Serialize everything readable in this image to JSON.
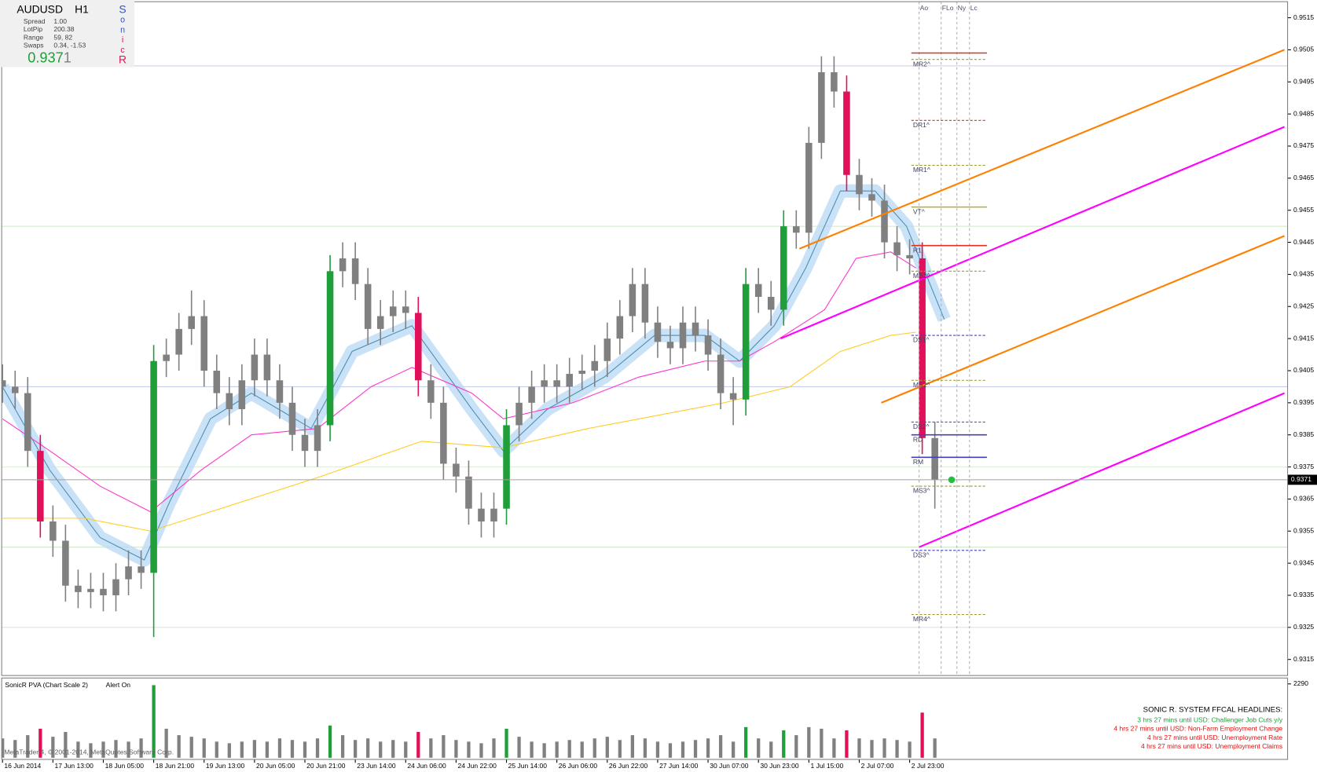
{
  "chart_data": {
    "type": "candlestick",
    "title": "AUDUSD",
    "timeframe": "H1",
    "info": [
      {
        "label": "Spread",
        "value": "1.00"
      },
      {
        "label": "LotPip",
        "value": "200.38"
      },
      {
        "label": "Range",
        "value": "59, 82"
      },
      {
        "label": "Swaps",
        "value": "0.34, -1.53"
      }
    ],
    "price_main": "0.937",
    "price_last": "1",
    "sonic_letters": [
      {
        "text": "S",
        "color": "#3050d0"
      },
      {
        "text": "o",
        "color": "#3050d0"
      },
      {
        "text": "n",
        "color": "#3050d0"
      },
      {
        "text": "i",
        "color": "#e0105a"
      },
      {
        "text": "c",
        "color": "#e0105a"
      },
      {
        "text": "R",
        "color": "#e0105a"
      }
    ],
    "x": [
      0,
      4,
      8,
      12,
      16,
      20,
      24,
      28,
      32,
      36,
      40,
      44,
      48,
      52,
      56,
      60,
      64,
      68,
      72,
      76,
      80,
      84,
      88,
      92,
      96,
      100,
      104,
      108,
      112,
      116,
      120,
      124,
      128,
      132,
      136,
      140,
      144,
      148,
      152,
      156,
      160,
      164,
      168,
      172,
      176,
      180,
      184,
      188,
      192,
      196,
      200,
      204,
      208,
      212,
      216,
      220,
      224,
      228,
      232,
      236,
      240,
      244,
      248,
      252,
      256,
      260,
      264,
      268,
      272,
      276,
      280,
      284,
      288,
      292,
      296
    ],
    "open": [
      0.9402,
      0.94,
      0.9398,
      0.938,
      0.9358,
      0.9352,
      0.9338,
      0.9336,
      0.9337,
      0.9335,
      0.934,
      0.9344,
      0.9342,
      0.9408,
      0.941,
      0.9418,
      0.9422,
      0.9405,
      0.9398,
      0.9393,
      0.9402,
      0.941,
      0.9402,
      0.9395,
      0.9385,
      0.938,
      0.9388,
      0.9436,
      0.944,
      0.9432,
      0.9418,
      0.9422,
      0.9425,
      0.9423,
      0.9402,
      0.9395,
      0.9376,
      0.9372,
      0.9362,
      0.9358,
      0.9362,
      0.9388,
      0.9395,
      0.94,
      0.9402,
      0.94,
      0.9404,
      0.9405,
      0.9408,
      0.9415,
      0.9422,
      0.9432,
      0.942,
      0.9414,
      0.9412,
      0.942,
      0.9416,
      0.941,
      0.9398,
      0.9396,
      0.9432,
      0.9428,
      0.9424,
      0.945,
      0.9448,
      0.9476,
      0.9498,
      0.9492,
      0.9466,
      0.946,
      0.9458,
      0.9445,
      0.9441,
      0.944,
      0.9384
    ],
    "high": [
      0.9407,
      0.9405,
      0.9403,
      0.9385,
      0.9363,
      0.9357,
      0.9343,
      0.9342,
      0.9342,
      0.9345,
      0.9349,
      0.9349,
      0.9413,
      0.9415,
      0.9423,
      0.943,
      0.9427,
      0.941,
      0.9403,
      0.9407,
      0.9415,
      0.9415,
      0.9407,
      0.94,
      0.939,
      0.9393,
      0.9441,
      0.9445,
      0.9445,
      0.9437,
      0.9427,
      0.943,
      0.943,
      0.9428,
      0.9407,
      0.94,
      0.9381,
      0.9377,
      0.9367,
      0.9367,
      0.9393,
      0.94,
      0.9405,
      0.9407,
      0.9407,
      0.9409,
      0.941,
      0.9413,
      0.942,
      0.9427,
      0.9437,
      0.9437,
      0.9425,
      0.9419,
      0.9425,
      0.9425,
      0.9421,
      0.9415,
      0.9403,
      0.9437,
      0.9437,
      0.9433,
      0.9455,
      0.9455,
      0.9481,
      0.9503,
      0.9503,
      0.9497,
      0.9471,
      0.9465,
      0.9463,
      0.945,
      0.9446,
      0.9445,
      0.9389
    ],
    "low": [
      0.9395,
      0.9393,
      0.9375,
      0.9353,
      0.9347,
      0.9333,
      0.9331,
      0.9331,
      0.933,
      0.933,
      0.9335,
      0.9337,
      0.9322,
      0.9403,
      0.9405,
      0.9413,
      0.94,
      0.9393,
      0.9388,
      0.9388,
      0.9397,
      0.9397,
      0.939,
      0.938,
      0.9375,
      0.9375,
      0.9383,
      0.9431,
      0.9427,
      0.9413,
      0.9413,
      0.9417,
      0.9418,
      0.9397,
      0.939,
      0.9371,
      0.9367,
      0.9357,
      0.9353,
      0.9353,
      0.9357,
      0.9383,
      0.939,
      0.9395,
      0.9395,
      0.9395,
      0.9399,
      0.94,
      0.9403,
      0.941,
      0.9417,
      0.9415,
      0.9409,
      0.9407,
      0.9407,
      0.9411,
      0.9405,
      0.9393,
      0.9388,
      0.9391,
      0.9423,
      0.9419,
      0.9419,
      0.9443,
      0.9443,
      0.9471,
      0.9487,
      0.9461,
      0.9455,
      0.9453,
      0.944,
      0.9436,
      0.9435,
      0.9379,
      0.9362
    ],
    "close": [
      0.94,
      0.9398,
      0.938,
      0.9358,
      0.9352,
      0.9338,
      0.9336,
      0.9337,
      0.9335,
      0.934,
      0.9344,
      0.9342,
      0.9408,
      0.941,
      0.9418,
      0.9422,
      0.9405,
      0.9398,
      0.9393,
      0.9402,
      0.941,
      0.9402,
      0.9395,
      0.9385,
      0.938,
      0.9388,
      0.9436,
      0.944,
      0.9432,
      0.9418,
      0.9422,
      0.9425,
      0.9423,
      0.9402,
      0.9395,
      0.9376,
      0.9372,
      0.9362,
      0.9358,
      0.9362,
      0.9388,
      0.9395,
      0.94,
      0.9402,
      0.94,
      0.9404,
      0.9405,
      0.9408,
      0.9415,
      0.9422,
      0.9432,
      0.942,
      0.9414,
      0.9412,
      0.942,
      0.9416,
      0.941,
      0.9398,
      0.9396,
      0.9432,
      0.9428,
      0.9424,
      0.945,
      0.9448,
      0.9476,
      0.9498,
      0.9492,
      0.9466,
      0.946,
      0.9458,
      0.9445,
      0.9441,
      0.944,
      0.9384,
      0.9371
    ],
    "colors": [
      "#808080",
      "#808080",
      "#808080",
      "#e0105a",
      "#808080",
      "#808080",
      "#808080",
      "#808080",
      "#808080",
      "#808080",
      "#808080",
      "#808080",
      "#1f9e3a",
      "#808080",
      "#808080",
      "#808080",
      "#808080",
      "#808080",
      "#808080",
      "#808080",
      "#808080",
      "#808080",
      "#808080",
      "#808080",
      "#808080",
      "#808080",
      "#1f9e3a",
      "#808080",
      "#808080",
      "#808080",
      "#808080",
      "#808080",
      "#808080",
      "#e0105a",
      "#808080",
      "#808080",
      "#808080",
      "#808080",
      "#808080",
      "#808080",
      "#1f9e3a",
      "#808080",
      "#808080",
      "#808080",
      "#808080",
      "#808080",
      "#808080",
      "#808080",
      "#808080",
      "#808080",
      "#808080",
      "#808080",
      "#808080",
      "#808080",
      "#808080",
      "#808080",
      "#808080",
      "#808080",
      "#808080",
      "#1f9e3a",
      "#808080",
      "#808080",
      "#1f9e3a",
      "#808080",
      "#808080",
      "#808080",
      "#808080",
      "#e0105a",
      "#808080",
      "#808080",
      "#808080",
      "#808080",
      "#808080",
      "#e0105a",
      "#808080"
    ],
    "xlim": [
      0,
      408
    ],
    "ylim": [
      0.931,
      0.952
    ],
    "yticks": [
      0.9315,
      0.9325,
      0.9335,
      0.9345,
      0.9355,
      0.9365,
      0.9375,
      0.9385,
      0.9395,
      0.9405,
      0.9415,
      0.9425,
      0.9435,
      0.9445,
      0.9455,
      0.9465,
      0.9475,
      0.9485,
      0.9495,
      0.9505,
      0.9515
    ],
    "xticks": [
      {
        "value": 0,
        "label": "16 Jun 2014"
      },
      {
        "value": 16,
        "label": "17 Jun 13:00"
      },
      {
        "value": 32,
        "label": "18 Jun 05:00"
      },
      {
        "value": 48,
        "label": "18 Jun 21:00"
      },
      {
        "value": 64,
        "label": "19 Jun 13:00"
      },
      {
        "value": 80,
        "label": "20 Jun 05:00"
      },
      {
        "value": 96,
        "label": "20 Jun 21:00"
      },
      {
        "value": 112,
        "label": "23 Jun 14:00"
      },
      {
        "value": 128,
        "label": "24 Jun 06:00"
      },
      {
        "value": 144,
        "label": "24 Jun 22:00"
      },
      {
        "value": 160,
        "label": "25 Jun 14:00"
      },
      {
        "value": 176,
        "label": "26 Jun 06:00"
      },
      {
        "value": 192,
        "label": "26 Jun 22:00"
      },
      {
        "value": 208,
        "label": "27 Jun 14:00"
      },
      {
        "value": 224,
        "label": "30 Jun 07:00"
      },
      {
        "value": 240,
        "label": "30 Jun 23:00"
      },
      {
        "value": 256,
        "label": "1 Jul 15:00"
      },
      {
        "value": 272,
        "label": "2 Jul 07:00"
      },
      {
        "value": 288,
        "label": "2 Jul 23:00"
      }
    ],
    "round_levels": [
      {
        "value": 0.95,
        "color": "#c8cdf0"
      },
      {
        "value": 0.945,
        "color": "#cfe8c8"
      },
      {
        "value": 0.94,
        "color": "#c8cdf0"
      },
      {
        "value": 0.9375,
        "color": "#e2eedc"
      },
      {
        "value": 0.935,
        "color": "#cfe8c8"
      },
      {
        "value": 0.9325,
        "color": "#e0e0e0"
      }
    ],
    "lines": [
      {
        "color": "#b8d8f4",
        "style": "band",
        "x": [
          0,
          15,
          31,
          45,
          53,
          66,
          79,
          98,
          111,
          130,
          149,
          159,
          173,
          191,
          207,
          223,
          234,
          245,
          255,
          266,
          277,
          287,
          299
        ],
        "values": [
          0.94,
          0.9374,
          0.9353,
          0.9346,
          0.9364,
          0.939,
          0.9398,
          0.9387,
          0.9411,
          0.9419,
          0.9393,
          0.938,
          0.9393,
          0.9403,
          0.9416,
          0.9416,
          0.9408,
          0.9419,
          0.9437,
          0.9461,
          0.9461,
          0.945,
          0.9421
        ]
      },
      {
        "color": "#ff33cc",
        "style": "line",
        "x": [
          0,
          15,
          31,
          47,
          63,
          79,
          100,
          117,
          130,
          149,
          159,
          181,
          202,
          223,
          234,
          245,
          261,
          271,
          282,
          290
        ],
        "values": [
          0.939,
          0.938,
          0.9369,
          0.9361,
          0.9374,
          0.9385,
          0.9387,
          0.94,
          0.9406,
          0.9398,
          0.939,
          0.9395,
          0.9403,
          0.9408,
          0.9408,
          0.9414,
          0.9424,
          0.944,
          0.9442,
          0.9437
        ]
      },
      {
        "color": "#ffcc22",
        "style": "line",
        "x": [
          0,
          26,
          47,
          66,
          101,
          133,
          159,
          186,
          229,
          250,
          266,
          282,
          290
        ],
        "values": [
          0.9359,
          0.9359,
          0.9355,
          0.9361,
          0.9372,
          0.9383,
          0.9381,
          0.9387,
          0.9395,
          0.94,
          0.9411,
          0.9416,
          0.9417
        ]
      }
    ],
    "trendlines": [
      {
        "color": "#ff8000",
        "x": [
          253,
          407
        ],
        "values": [
          0.9443,
          0.9505
        ]
      },
      {
        "color": "#ff00ff",
        "x": [
          247,
          407
        ],
        "values": [
          0.9415,
          0.9481
        ]
      },
      {
        "color": "#ff8000",
        "x": [
          279,
          407
        ],
        "values": [
          0.9395,
          0.9447
        ]
      },
      {
        "color": "#ff00ff",
        "x": [
          291,
          407
        ],
        "values": [
          0.935,
          0.9398
        ]
      }
    ],
    "levels": [
      {
        "label": null,
        "value": 0.9504,
        "color": "#e03020",
        "style": "solid"
      },
      {
        "label": "MR2^",
        "value": 0.9502,
        "color": "#9a9a30",
        "style": "dashed"
      },
      {
        "label": "DR1^",
        "value": 0.9483,
        "color": "#e03020",
        "style": "dashed"
      },
      {
        "label": "MR1^",
        "value": 0.9469,
        "color": "#9a9a30",
        "style": "dashed"
      },
      {
        "label": "VT^",
        "value": 0.9456,
        "color": "#b0b030",
        "style": "solid"
      },
      {
        "label": "R1",
        "value": 0.9444,
        "color": "#e03020",
        "style": "solid"
      },
      {
        "label": "MS1^",
        "value": 0.9436,
        "color": "#9a9a30",
        "style": "dashed"
      },
      {
        "label": "DS1^",
        "value": 0.9416,
        "color": "#4040c0",
        "style": "dashed"
      },
      {
        "label": "MS2^",
        "value": 0.9402,
        "color": "#9a9a30",
        "style": "dashed"
      },
      {
        "label": "DS2^",
        "value": 0.9389,
        "color": "#4040c0",
        "style": "dashed"
      },
      {
        "label": "RD",
        "value": 0.9385,
        "color": "#4040c0",
        "style": "solid"
      },
      {
        "label": "RM",
        "value": 0.9378,
        "color": "#4040c0",
        "style": "solid"
      },
      {
        "label": "MS3^",
        "value": 0.9369,
        "color": "#9a9a30",
        "style": "dashed"
      },
      {
        "label": "DS3^",
        "value": 0.9349,
        "color": "#4040c0",
        "style": "dashed"
      },
      {
        "label": "MR4^",
        "value": 0.9329,
        "color": "#9a9a30",
        "style": "dashed"
      }
    ],
    "sessions": [
      {
        "label": "Ao",
        "x": 291
      },
      {
        "label": "FLo",
        "x": 298
      },
      {
        "label": "Ny",
        "x": 303
      },
      {
        "label": "Lc",
        "x": 307
      }
    ],
    "volume": {
      "title": "SonicR PVA  (Chart Scale 2)",
      "alert": "Alert On",
      "values": [
        600,
        550,
        700,
        900,
        650,
        800,
        500,
        450,
        500,
        550,
        500,
        600,
        2250,
        900,
        700,
        650,
        600,
        500,
        450,
        500,
        550,
        500,
        600,
        550,
        500,
        600,
        1000,
        700,
        550,
        600,
        500,
        550,
        500,
        800,
        600,
        700,
        550,
        500,
        450,
        600,
        900,
        650,
        500,
        450,
        500,
        550,
        500,
        600,
        650,
        550,
        700,
        600,
        500,
        450,
        500,
        550,
        600,
        700,
        500,
        950,
        600,
        500,
        850,
        700,
        950,
        900,
        600,
        850,
        600,
        550,
        600,
        550,
        500,
        1400,
        600
      ],
      "ylim": [
        0,
        2290
      ],
      "yticks": [
        2290
      ]
    },
    "headlines": [
      {
        "text": "SONIC R. SYSTEM  FFCAL HEADLINES:",
        "color": "#000000"
      },
      {
        "text": "3 hrs 27 mins until USD: Challenger Job Cuts y/y",
        "color": "#1f9e3a"
      },
      {
        "text": "4 hrs 27 mins until USD: Non-Farm Employment Change",
        "color": "#e01010"
      },
      {
        "text": "4 hrs 27 mins until USD: Unemployment Rate",
        "color": "#e01010"
      },
      {
        "text": "4 hrs 27 mins until USD: Unemployment Claims",
        "color": "#e01010"
      }
    ],
    "copyright": "MetaTrader 4, © 2001-2014, MetaQuotes Software Corp."
  }
}
